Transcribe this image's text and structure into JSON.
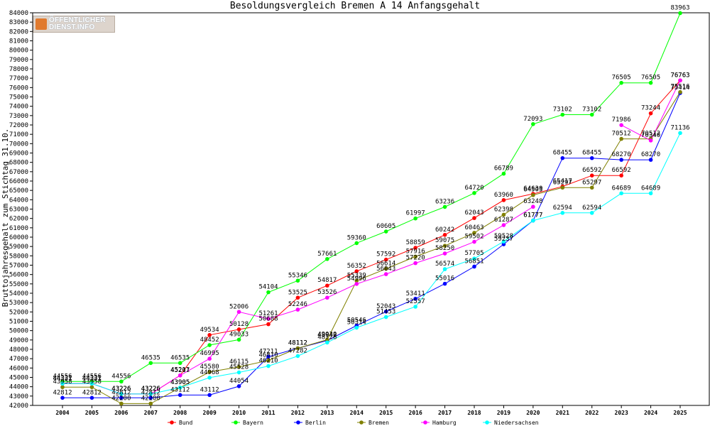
{
  "chart_data": {
    "type": "line",
    "title": "Besoldungsvergleich Bremen A 14 Anfangsgehalt",
    "ylabel": "Bruttojahresgehalt zum Stichtag 31.10.",
    "xlabel": "",
    "x": [
      "2004",
      "2005",
      "2006",
      "2007",
      "2008",
      "2009",
      "2010",
      "2011",
      "2012",
      "2013",
      "2014",
      "2015",
      "2016",
      "2017",
      "2018",
      "2019",
      "2020",
      "2021",
      "2022",
      "2023",
      "2024",
      "2025"
    ],
    "ylim": [
      42000,
      84000
    ],
    "ytick_step": 1000,
    "grid": false,
    "legend_position": "bottom",
    "series": [
      {
        "name": "Bund",
        "color": "#ff0000",
        "values": [
          44331,
          44331,
          43226,
          43226,
          45207,
          49534,
          50128,
          50688,
          53525,
          54817,
          56352,
          57592,
          58859,
          60242,
          62043,
          63960,
          64630,
          65417,
          66592,
          66592,
          73244,
          76763
        ]
      },
      {
        "name": "Bayern",
        "color": "#00ff00",
        "values": [
          44556,
          44556,
          44556,
          46535,
          46535,
          48452,
          49033,
          54104,
          55346,
          57661,
          59360,
          60605,
          61997,
          63236,
          64720,
          66789,
          72093,
          73102,
          73102,
          76505,
          76505,
          83963
        ]
      },
      {
        "name": "Berlin",
        "color": "#0000ff",
        "values": [
          42812,
          42812,
          42812,
          42812,
          43112,
          43112,
          44054,
          47211,
          48112,
          48942,
          50546,
          52043,
          53411,
          55016,
          56851,
          59237,
          61777,
          68455,
          68455,
          68270,
          68270,
          75414
        ]
      },
      {
        "name": "Bremen",
        "color": "#808000",
        "values": [
          43958,
          43958,
          42200,
          42200,
          43905,
          45580,
          46115,
          46810,
          48112,
          49030,
          55339,
          56614,
          57916,
          59075,
          60463,
          62398,
          64503,
          65297,
          65297,
          70512,
          70512,
          75516
        ]
      },
      {
        "name": "Hamburg",
        "color": "#ff00ff",
        "values": [
          44331,
          44331,
          43226,
          43226,
          45211,
          46995,
          52006,
          51261,
          52246,
          53526,
          54996,
          56043,
          57220,
          58250,
          59502,
          61287,
          63248,
          null,
          null,
          71986,
          70340,
          76763
        ]
      },
      {
        "name": "Niedersachsen",
        "color": "#00ffff",
        "values": [
          44331,
          44331,
          43226,
          43226,
          43905,
          44968,
          45528,
          46210,
          47282,
          48728,
          50314,
          51453,
          52557,
          56574,
          57705,
          59528,
          61777,
          62594,
          62594,
          64689,
          64689,
          71136
        ]
      }
    ],
    "label_series_order": [
      "Bayern",
      "Bund",
      "Hamburg",
      "Bremen",
      "Berlin",
      "Niedersachsen"
    ]
  },
  "logo": {
    "line1": "ÖFFENTLICHER",
    "line2": "DIENST.INFO"
  }
}
